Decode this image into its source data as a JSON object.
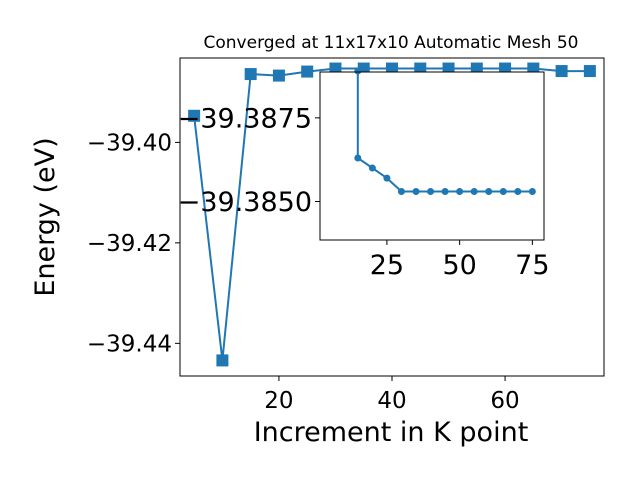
{
  "chart_data": [
    {
      "type": "line",
      "title": "Converged at 11x17x10 Automatic Mesh 50",
      "xlabel": "Increment in K point",
      "ylabel": "Energy (eV)",
      "xlim": [
        2.5,
        77.5
      ],
      "ylim": [
        -39.4465,
        -39.3832
      ],
      "xticks": [
        20,
        40,
        60
      ],
      "xtick_labels": [
        "20",
        "40",
        "60"
      ],
      "yticks": [
        -39.44,
        -39.42,
        -39.4
      ],
      "ytick_labels": [
        "−39.44",
        "−39.42",
        "−39.40"
      ],
      "marker": "square",
      "color": "#1f77b4",
      "grid": false,
      "series": [
        {
          "x": [
            5,
            10,
            15,
            20,
            25,
            30,
            35,
            40,
            45,
            50,
            55,
            60,
            65,
            70,
            75
          ],
          "y": [
            -39.3947,
            -39.4434,
            -39.3864,
            -39.3867,
            -39.3859,
            -39.3853,
            -39.3853,
            -39.3853,
            -39.3853,
            -39.3853,
            -39.3853,
            -39.3853,
            -39.3853,
            -39.3858,
            -39.3858
          ]
        }
      ]
    },
    {
      "type": "line",
      "title": "",
      "xlabel": "",
      "ylabel": "",
      "xlim": [
        2,
        79
      ],
      "ylim": [
        -39.38385,
        -39.38887
      ],
      "xticks": [
        25,
        50,
        75
      ],
      "xtick_labels": [
        "25",
        "50",
        "75"
      ],
      "yticks": [
        -39.3875,
        -39.385
      ],
      "ytick_labels": [
        "−39.3875",
        "−39.3850"
      ],
      "marker": "circle",
      "color": "#1f77b4",
      "grid": false,
      "series": [
        {
          "x": [
            15,
            15,
            20,
            25,
            30,
            35,
            40,
            45,
            50,
            55,
            60,
            65,
            70,
            75
          ],
          "y": [
            -39.3889,
            -39.3863,
            -39.386,
            -39.3857,
            -39.3853,
            -39.3853,
            -39.3853,
            -39.3853,
            -39.3853,
            -39.3853,
            -39.3853,
            -39.3853,
            -39.3853,
            -39.3853
          ]
        }
      ]
    }
  ]
}
